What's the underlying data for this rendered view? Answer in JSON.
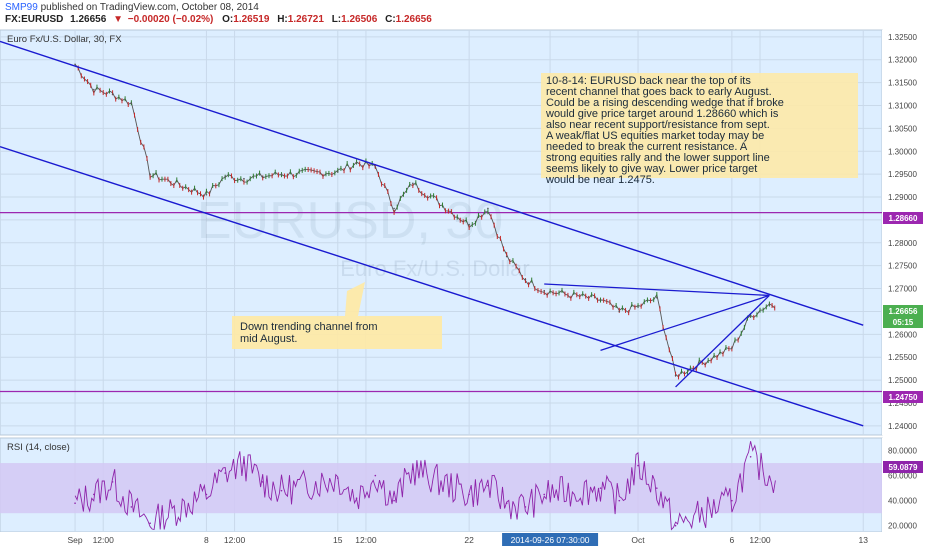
{
  "header": {
    "author": "SMP99",
    "published_text": "published on TradingView.com, October 08, 2014",
    "symbol": "FX:EURUSD",
    "last": "1.26656",
    "change": "−0.00020 (−0.02%)",
    "open_label": "O:",
    "open": "1.26519",
    "high_label": "H:",
    "high": "1.26721",
    "low_label": "L:",
    "low": "1.26506",
    "close_label": "C:",
    "close": "1.26656"
  },
  "price_pane": {
    "title": "Euro Fx/U.S. Dollar, 30, FX",
    "watermark_symbol": "EURUSD, 30",
    "watermark_name": "Euro Fx/U.S. Dollar",
    "y_ticks": [
      "1.32500",
      "1.32000",
      "1.31500",
      "1.31000",
      "1.30500",
      "1.30000",
      "1.29500",
      "1.29000",
      "1.28500",
      "1.28000",
      "1.27500",
      "1.27000",
      "1.26500",
      "1.26000",
      "1.25500",
      "1.25000",
      "1.24500",
      "1.24000"
    ],
    "level_labels": [
      "1.28660",
      "1.24750"
    ],
    "last_price_label": "1.26656",
    "countdown_label": "05:15"
  },
  "rsi_pane": {
    "title": "RSI (14, close)",
    "y_ticks": [
      "80.0000",
      "60.0000",
      "40.0000",
      "20.0000"
    ],
    "value_label": "59.0879"
  },
  "x_axis": {
    "ticks": [
      "Sep",
      "12:00",
      "8",
      "12:00",
      "15",
      "12:00",
      "22",
      "2014-09-26 07:30:00",
      "Oct",
      "6",
      "12:00",
      "13"
    ]
  },
  "annotations": {
    "main_note": [
      "10-8-14: EURUSD back near the top of its",
      "recent channel that goes back to early August.",
      "Could be a rising descending wedge that if broke",
      "would give price target around 1.28660 which is",
      "also near recent support/resistance from sept.",
      "A weak/flat US equities market today may be",
      "needed to break the current resistance.  A",
      "strong equities rally and the lower support line",
      "seems likely to give way.  Lower price target",
      "would be near 1.2475."
    ],
    "channel_note": [
      "Down trending channel from",
      "mid August."
    ]
  },
  "chart_data": [
    {
      "type": "line",
      "title": "Euro Fx/U.S. Dollar, 30, FX",
      "x": [
        "2014-09-01",
        "2014-09-02",
        "2014-09-03",
        "2014-09-04",
        "2014-09-05",
        "2014-09-08",
        "2014-09-09",
        "2014-09-10",
        "2014-09-11",
        "2014-09-12",
        "2014-09-15",
        "2014-09-16",
        "2014-09-17",
        "2014-09-18",
        "2014-09-19",
        "2014-09-22",
        "2014-09-23",
        "2014-09-24",
        "2014-09-25",
        "2014-09-26",
        "2014-09-29",
        "2014-09-30",
        "2014-10-01",
        "2014-10-02",
        "2014-10-03",
        "2014-10-06",
        "2014-10-07",
        "2014-10-08"
      ],
      "series": [
        {
          "values": [
            1.319,
            1.3135,
            1.3125,
            1.3105,
            1.295,
            1.2905,
            1.2945,
            1.294,
            1.2945,
            1.295,
            1.2955,
            1.2975,
            1.2965,
            1.2875,
            1.293,
            1.284,
            1.2875,
            1.277,
            1.272,
            1.2695,
            1.2675,
            1.265,
            1.266,
            1.268,
            1.251,
            1.257,
            1.264,
            1.2666
          ]
        }
      ],
      "hlines": [
        1.2866,
        1.2475
      ],
      "channel_upper": {
        "from": [
          "2014-08-28",
          1.324
        ],
        "to": [
          "2014-10-13",
          1.262
        ]
      },
      "channel_lower": {
        "from": [
          "2014-08-28",
          1.301
        ],
        "to": [
          "2014-10-13",
          1.24
        ]
      },
      "wedge_upper": {
        "from": [
          "2014-09-26",
          1.271
        ],
        "to": [
          "2014-10-08",
          1.2685
        ]
      },
      "wedge_lower": {
        "from": [
          "2014-10-03",
          1.2485
        ],
        "to": [
          "2014-10-08",
          1.2685
        ]
      },
      "wedge_mid": {
        "from": [
          "2014-09-29",
          1.2565
        ],
        "to": [
          "2014-10-08",
          1.2685
        ]
      },
      "ylim": [
        1.238,
        1.3265
      ],
      "xlim": [
        "2014-08-28",
        "2014-10-14"
      ],
      "grid": true,
      "colors": {
        "price": "#555555",
        "up": "#2e7d32",
        "down": "#c62828",
        "channel": "#1a1ad0",
        "level": "#9c27b0",
        "background": "#ddeeff"
      }
    },
    {
      "type": "line",
      "title": "RSI (14, close)",
      "x": [
        "2014-09-01",
        "2014-09-02",
        "2014-09-03",
        "2014-09-04",
        "2014-09-05",
        "2014-09-08",
        "2014-09-09",
        "2014-09-10",
        "2014-09-11",
        "2014-09-12",
        "2014-09-15",
        "2014-09-16",
        "2014-09-17",
        "2014-09-18",
        "2014-09-19",
        "2014-09-22",
        "2014-09-23",
        "2014-09-24",
        "2014-09-25",
        "2014-09-26",
        "2014-09-29",
        "2014-09-30",
        "2014-10-01",
        "2014-10-02",
        "2014-10-03",
        "2014-10-06",
        "2014-10-07",
        "2014-10-08"
      ],
      "series": [
        {
          "values": [
            38,
            45,
            55,
            35,
            22,
            45,
            62,
            70,
            55,
            48,
            58,
            42,
            60,
            40,
            65,
            45,
            52,
            38,
            35,
            45,
            50,
            40,
            68,
            50,
            20,
            40,
            75,
            59
          ]
        }
      ],
      "bands": [
        30,
        70
      ],
      "ylim": [
        15,
        90
      ],
      "colors": {
        "line": "#8e24aa",
        "band": "#d4c8f4"
      }
    }
  ]
}
